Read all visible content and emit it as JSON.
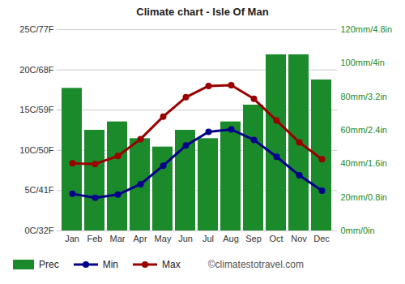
{
  "chart_data": {
    "type": "bar",
    "title": "Climate chart - Isle Of Man",
    "annotation": "©climatestotravel.com",
    "categories": [
      "Jan",
      "Feb",
      "Mar",
      "Apr",
      "May",
      "Jun",
      "Jul",
      "Aug",
      "Sep",
      "Oct",
      "Nov",
      "Dec"
    ],
    "series": [
      {
        "name": "Prec",
        "type": "bar",
        "axis": "y2",
        "color": "#1a8a2a",
        "values": [
          85,
          60,
          65,
          55,
          50,
          60,
          55,
          65,
          75,
          105,
          105,
          90
        ]
      },
      {
        "name": "Min",
        "type": "line",
        "marker": "circle",
        "color": "#00008b",
        "values": [
          4.6,
          4.1,
          4.5,
          5.8,
          8.1,
          10.6,
          12.3,
          12.6,
          11.3,
          9.2,
          6.9,
          5.0
        ]
      },
      {
        "name": "Max",
        "type": "line",
        "marker": "circle",
        "color": "#990000",
        "values": [
          8.4,
          8.3,
          9.3,
          11.4,
          14.2,
          16.6,
          18.0,
          18.1,
          16.4,
          13.7,
          11.0,
          8.9
        ]
      }
    ],
    "ylim": [
      0,
      25
    ],
    "yticks": [
      {
        "value": 0,
        "label": "0C/32F"
      },
      {
        "value": 5,
        "label": "5C/41F"
      },
      {
        "value": 10,
        "label": "10C/50F"
      },
      {
        "value": 15,
        "label": "15C/59F"
      },
      {
        "value": 20,
        "label": "20C/68F"
      },
      {
        "value": 25,
        "label": "25C/77F"
      }
    ],
    "y2lim": [
      0,
      120
    ],
    "y2ticks": [
      {
        "value": 0,
        "label": "0mm/0in"
      },
      {
        "value": 20,
        "label": "20mm/0.8in"
      },
      {
        "value": 40,
        "label": "40mm/1.6in"
      },
      {
        "value": 60,
        "label": "60mm/2.4in"
      },
      {
        "value": 80,
        "label": "80mm/3.2in"
      },
      {
        "value": 100,
        "label": "100mm/4in"
      },
      {
        "value": 120,
        "label": "120mm/4.8in"
      }
    ],
    "grid": true,
    "legend": "bottom"
  }
}
